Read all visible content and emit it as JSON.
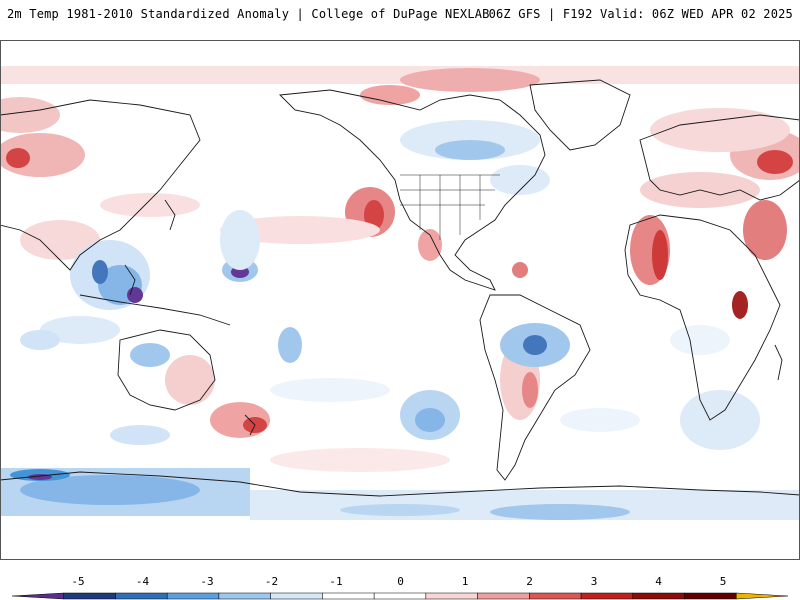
{
  "header": {
    "left": "2m Temp 1981-2010 Standardized Anomaly | College of DuPage NEXLAB",
    "right": "06Z GFS | F192 Valid: 06Z WED APR 02 2025"
  },
  "map": {
    "colors": {
      "land_line": "#222222",
      "warm_light": "#f7d7d7",
      "warm_mid": "#ef9f9f",
      "warm_strong": "#d63a3a",
      "cool_light": "#dce9f7",
      "cool_mid": "#9ec5ec",
      "cool_strong": "#3a8fd6",
      "cool_extreme": "#7a3fc2"
    }
  },
  "colorbar": {
    "labels": [
      "-5",
      "-4",
      "-3",
      "-2",
      "-1",
      "0",
      "1",
      "2",
      "3",
      "4",
      "5"
    ],
    "segments": [
      {
        "color": "#5a2d91"
      },
      {
        "color": "#1f3a78"
      },
      {
        "color": "#2f6fb8"
      },
      {
        "color": "#5aa0de"
      },
      {
        "color": "#9cc8ef"
      },
      {
        "color": "#d6e8f8"
      },
      {
        "color": "#ffffff"
      },
      {
        "color": "#ffffff"
      },
      {
        "color": "#f7d6d6"
      },
      {
        "color": "#ee9e9e"
      },
      {
        "color": "#dd5656"
      },
      {
        "color": "#c21f1f"
      },
      {
        "color": "#8c0b0b"
      },
      {
        "color": "#600000"
      },
      {
        "color": "#f0b400"
      }
    ]
  }
}
